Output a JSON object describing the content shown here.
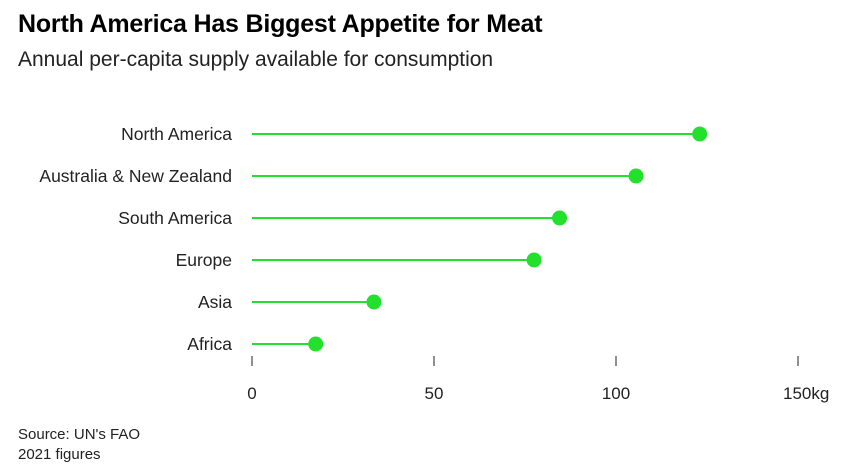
{
  "title": "North America Has Biggest Appetite for Meat",
  "subtitle": "Annual per-capita supply available for consumption",
  "source": "Source: UN's FAO",
  "note": "2021 figures",
  "chart_data": {
    "type": "lollipop",
    "orientation": "horizontal",
    "categories": [
      "North America",
      "Australia & New Zealand",
      "South America",
      "Europe",
      "Asia",
      "Africa"
    ],
    "values": [
      123,
      105.5,
      84.5,
      77.5,
      33.5,
      17.5
    ],
    "unit": "kg",
    "xlim": [
      0,
      150
    ],
    "ticks": [
      0,
      50,
      100,
      150
    ],
    "tick_labels": [
      "0",
      "50",
      "100",
      "150kg"
    ],
    "color": "#22e02c",
    "grid": false
  }
}
